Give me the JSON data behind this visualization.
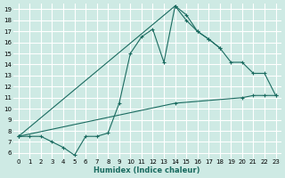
{
  "xlabel": "Humidex (Indice chaleur)",
  "bg_color": "#ceeae4",
  "grid_color": "#ffffff",
  "line_color": "#1a6b60",
  "xlim": [
    -0.5,
    23.5
  ],
  "ylim": [
    5.5,
    19.5
  ],
  "xticks": [
    0,
    1,
    2,
    3,
    4,
    5,
    6,
    7,
    8,
    9,
    10,
    11,
    12,
    13,
    14,
    15,
    16,
    17,
    18,
    19,
    20,
    21,
    22,
    23
  ],
  "yticks": [
    6,
    7,
    8,
    9,
    10,
    11,
    12,
    13,
    14,
    15,
    16,
    17,
    18,
    19
  ],
  "line1_x": [
    0,
    1,
    2,
    3,
    4,
    5,
    6,
    7,
    8,
    9,
    10,
    11,
    12,
    13,
    14,
    15,
    16,
    17,
    18
  ],
  "line1_y": [
    7.5,
    7.5,
    7.5,
    7.0,
    6.5,
    5.8,
    7.5,
    7.5,
    7.8,
    10.5,
    15.0,
    16.5,
    17.2,
    14.2,
    19.3,
    18.5,
    17.0,
    16.3,
    15.5
  ],
  "line2_x": [
    0,
    14,
    15,
    16,
    17,
    18,
    19,
    20,
    21,
    22,
    23
  ],
  "line2_y": [
    7.5,
    19.3,
    18.0,
    17.0,
    16.3,
    15.5,
    14.2,
    14.2,
    13.2,
    13.2,
    11.2
  ],
  "line3_x": [
    0,
    14,
    20,
    21,
    22,
    23
  ],
  "line3_y": [
    7.5,
    10.5,
    11.0,
    11.2,
    11.2,
    11.2
  ]
}
